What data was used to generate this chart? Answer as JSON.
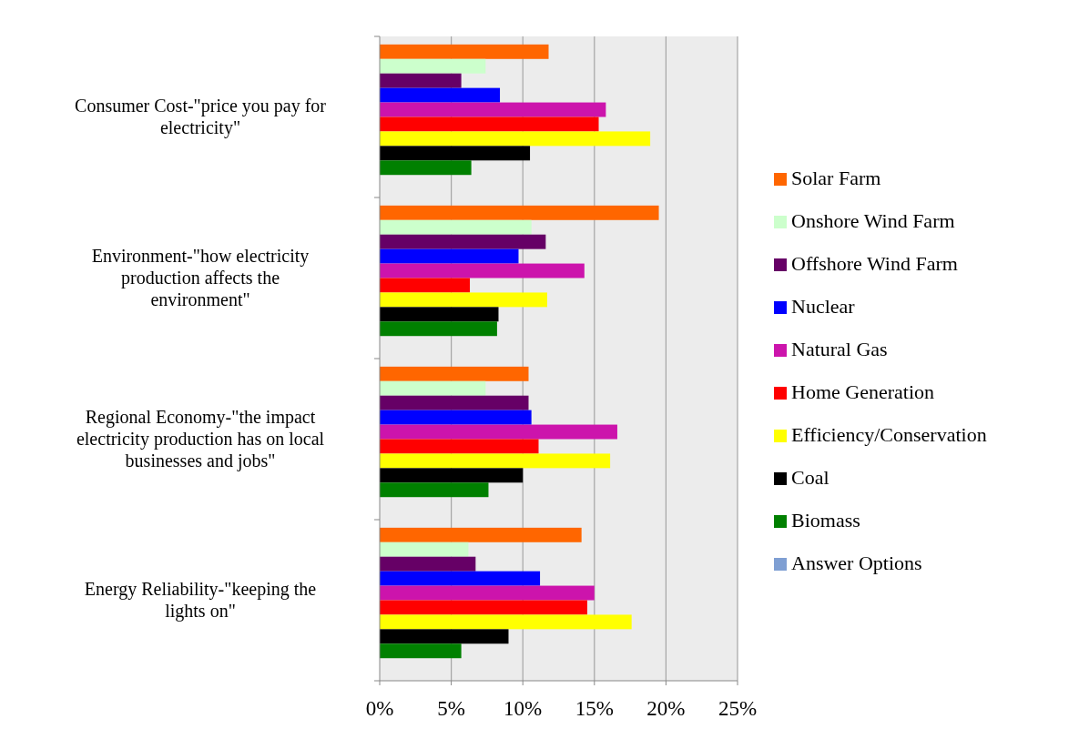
{
  "chart_data": {
    "type": "bar",
    "orientation": "horizontal",
    "categories": [
      "Consumer Cost-\"price you pay for electricity\"",
      "Environment-\"how electricity production affects the environment\"",
      "Regional Economy-\"the impact electricity production has on local businesses and jobs\"",
      "Energy Reliability-\"keeping the lights on\""
    ],
    "series": [
      {
        "name": "Solar Farm",
        "color": "#ff6600",
        "values": [
          11.8,
          19.5,
          10.4,
          14.1
        ]
      },
      {
        "name": "Onshore Wind Farm",
        "color": "#ccffcc",
        "values": [
          7.4,
          10.6,
          7.4,
          6.2
        ]
      },
      {
        "name": "Offshore Wind Farm",
        "color": "#660066",
        "values": [
          5.7,
          11.6,
          10.4,
          6.7
        ]
      },
      {
        "name": "Nuclear",
        "color": "#0000ff",
        "values": [
          8.4,
          9.7,
          10.6,
          11.2
        ]
      },
      {
        "name": "Natural Gas",
        "color": "#cc14ac",
        "values": [
          15.8,
          14.3,
          16.6,
          15.0
        ]
      },
      {
        "name": "Home Generation",
        "color": "#ff0000",
        "values": [
          15.3,
          6.3,
          11.1,
          14.5
        ]
      },
      {
        "name": "Efficiency/Conservation",
        "color": "#ffff00",
        "values": [
          18.9,
          11.7,
          16.1,
          17.6
        ]
      },
      {
        "name": "Coal",
        "color": "#000000",
        "values": [
          10.5,
          8.3,
          10.0,
          9.0
        ]
      },
      {
        "name": "Biomass",
        "color": "#008000",
        "values": [
          6.4,
          8.2,
          7.6,
          5.7
        ]
      },
      {
        "name": "Answer Options",
        "color": "#7f9fd3",
        "values": [
          null,
          null,
          null,
          null
        ]
      }
    ],
    "xlim": [
      0,
      25
    ],
    "xticks": [
      {
        "value": 0,
        "label": "0%"
      },
      {
        "value": 5,
        "label": "5%"
      },
      {
        "value": 10,
        "label": "10%"
      },
      {
        "value": 15,
        "label": "15%"
      },
      {
        "value": 20,
        "label": "20%"
      },
      {
        "value": 25,
        "label": "25%"
      }
    ],
    "grid": "x",
    "legend": "right"
  }
}
